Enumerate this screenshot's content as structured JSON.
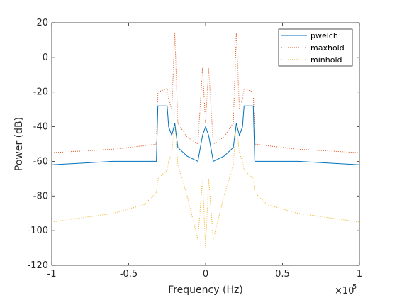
{
  "chart_data": {
    "type": "line",
    "title": "",
    "xlabel": "Frequency (Hz)",
    "ylabel": "Power (dB)",
    "x_exponent_label": "×10",
    "x_exponent_power": "5",
    "xlim": [
      -100000,
      100000
    ],
    "ylim": [
      -120,
      20
    ],
    "x_tick_values": [
      -100000,
      -50000,
      0,
      50000,
      100000
    ],
    "x_tick_labels": [
      "-1",
      "-0.5",
      "0",
      "0.5",
      "1"
    ],
    "y_tick_values": [
      -120,
      -100,
      -80,
      -60,
      -40,
      -20,
      0,
      20
    ],
    "y_tick_labels": [
      "-120",
      "-100",
      "-80",
      "-60",
      "-40",
      "-20",
      "0",
      "20"
    ],
    "grid": false,
    "legend_position": "top-right",
    "series": [
      {
        "name": "pwelch",
        "color": "#0072BD",
        "style": "solid",
        "points": [
          [
            -100000,
            -62
          ],
          [
            -60000,
            -60
          ],
          [
            -40000,
            -60
          ],
          [
            -32000,
            -60
          ],
          [
            -31000,
            -28
          ],
          [
            -25000,
            -28
          ],
          [
            -24000,
            -40
          ],
          [
            -22000,
            -45
          ],
          [
            -20000,
            -38
          ],
          [
            -18000,
            -52
          ],
          [
            -12000,
            -57
          ],
          [
            -5000,
            -60
          ],
          [
            -2000,
            -45
          ],
          [
            0,
            -40
          ],
          [
            2000,
            -45
          ],
          [
            5000,
            -60
          ],
          [
            12000,
            -57
          ],
          [
            18000,
            -52
          ],
          [
            20000,
            -38
          ],
          [
            22000,
            -45
          ],
          [
            24000,
            -40
          ],
          [
            25000,
            -28
          ],
          [
            31000,
            -28
          ],
          [
            32000,
            -60
          ],
          [
            40000,
            -60
          ],
          [
            60000,
            -60
          ],
          [
            100000,
            -62
          ]
        ]
      },
      {
        "name": "maxhold",
        "color": "#D95319",
        "style": "dotted",
        "points": [
          [
            -100000,
            -55
          ],
          [
            -60000,
            -53
          ],
          [
            -40000,
            -51
          ],
          [
            -32000,
            -50
          ],
          [
            -31000,
            -20
          ],
          [
            -25000,
            -18
          ],
          [
            -24000,
            -24
          ],
          [
            -22000,
            -30
          ],
          [
            -20000,
            14
          ],
          [
            -18000,
            -38
          ],
          [
            -12000,
            -46
          ],
          [
            -5000,
            -50
          ],
          [
            -2000,
            -6
          ],
          [
            0,
            -38
          ],
          [
            2000,
            -6
          ],
          [
            5000,
            -50
          ],
          [
            12000,
            -46
          ],
          [
            18000,
            -38
          ],
          [
            20000,
            14
          ],
          [
            22000,
            -30
          ],
          [
            24000,
            -24
          ],
          [
            25000,
            -18
          ],
          [
            31000,
            -20
          ],
          [
            32000,
            -50
          ],
          [
            40000,
            -51
          ],
          [
            60000,
            -53
          ],
          [
            100000,
            -55
          ]
        ]
      },
      {
        "name": "minhold",
        "color": "#EDB120",
        "style": "dotted",
        "points": [
          [
            -100000,
            -95
          ],
          [
            -60000,
            -90
          ],
          [
            -40000,
            -85
          ],
          [
            -32000,
            -78
          ],
          [
            -31000,
            -70
          ],
          [
            -25000,
            -65
          ],
          [
            -24000,
            -60
          ],
          [
            -22000,
            -55
          ],
          [
            -20000,
            -38
          ],
          [
            -18000,
            -62
          ],
          [
            -12000,
            -80
          ],
          [
            -5000,
            -105
          ],
          [
            -2000,
            -70
          ],
          [
            0,
            -110
          ],
          [
            2000,
            -70
          ],
          [
            5000,
            -105
          ],
          [
            12000,
            -80
          ],
          [
            18000,
            -62
          ],
          [
            20000,
            -38
          ],
          [
            22000,
            -55
          ],
          [
            24000,
            -60
          ],
          [
            25000,
            -65
          ],
          [
            31000,
            -70
          ],
          [
            32000,
            -78
          ],
          [
            40000,
            -85
          ],
          [
            60000,
            -90
          ],
          [
            100000,
            -95
          ]
        ]
      }
    ]
  }
}
